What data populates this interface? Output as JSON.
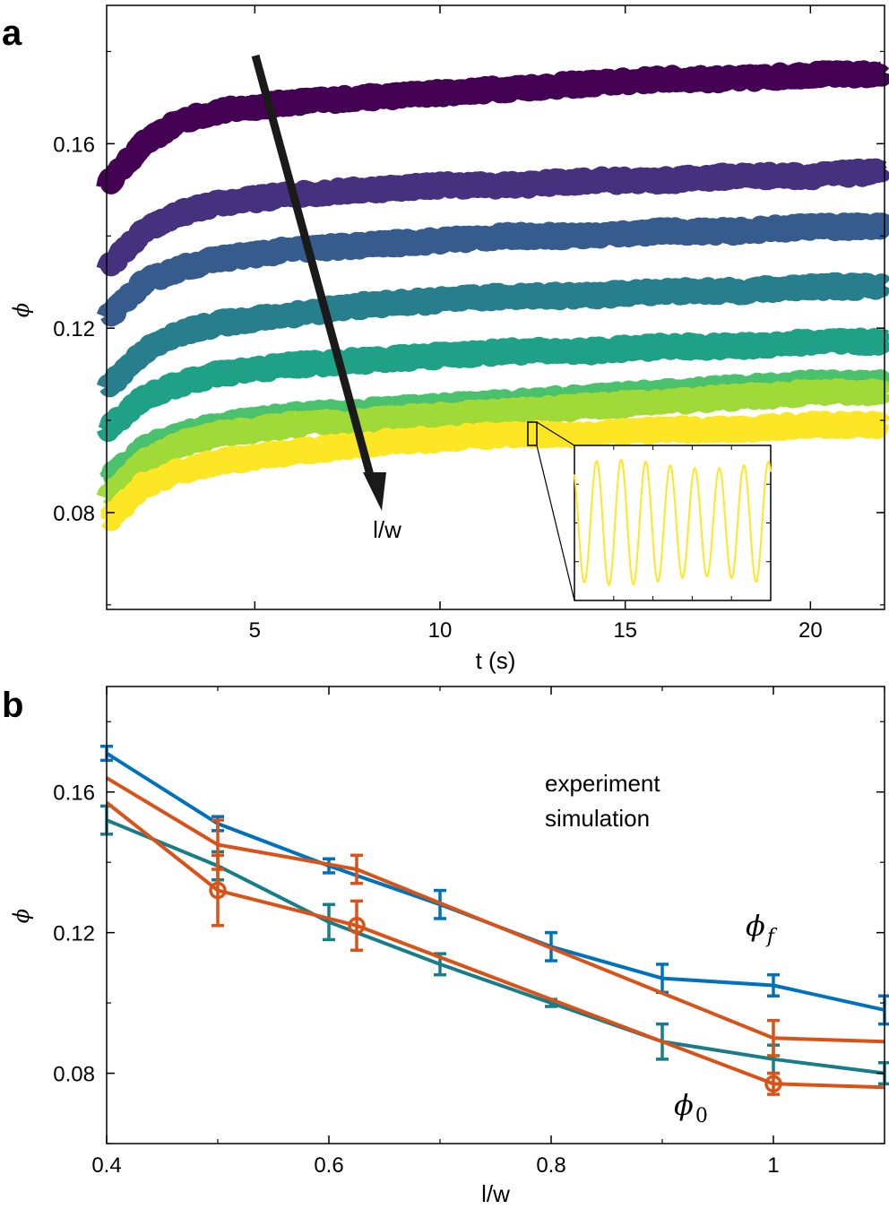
{
  "chart_data": [
    {
      "panel": "a",
      "type": "line",
      "xlabel": "t (s)",
      "ylabel": "ϕ",
      "xlim": [
        1,
        22
      ],
      "ylim": [
        0.059,
        0.19
      ],
      "xticks": [
        5,
        10,
        15,
        20
      ],
      "yticks": [
        0.08,
        0.12,
        0.16
      ],
      "ytick_labels": [
        "0.08",
        "0.12",
        "0.16"
      ],
      "arrow_label": "l/w",
      "series": [
        {
          "color": "#440154",
          "x": [
            1,
            2,
            3,
            4,
            6,
            8,
            10,
            12,
            14,
            16,
            18,
            20,
            22
          ],
          "y": [
            0.151,
            0.16,
            0.165,
            0.167,
            0.169,
            0.17,
            0.171,
            0.172,
            0.173,
            0.174,
            0.174,
            0.175,
            0.175
          ]
        },
        {
          "color": "#46317e",
          "x": [
            1,
            2,
            3,
            4,
            6,
            8,
            10,
            12,
            14,
            16,
            18,
            20,
            22
          ],
          "y": [
            0.133,
            0.141,
            0.145,
            0.147,
            0.149,
            0.15,
            0.151,
            0.151,
            0.152,
            0.152,
            0.153,
            0.153,
            0.154
          ]
        },
        {
          "color": "#365c8d",
          "x": [
            1,
            2,
            3,
            4,
            6,
            8,
            10,
            12,
            14,
            16,
            18,
            20,
            22
          ],
          "y": [
            0.122,
            0.13,
            0.133,
            0.135,
            0.137,
            0.138,
            0.139,
            0.14,
            0.14,
            0.141,
            0.141,
            0.142,
            0.142
          ]
        },
        {
          "color": "#277f8e",
          "x": [
            1,
            2,
            3,
            4,
            6,
            8,
            10,
            12,
            14,
            16,
            18,
            20,
            22
          ],
          "y": [
            0.107,
            0.115,
            0.119,
            0.121,
            0.123,
            0.125,
            0.126,
            0.127,
            0.127,
            0.128,
            0.128,
            0.129,
            0.129
          ]
        },
        {
          "color": "#1fa187",
          "x": [
            1,
            2,
            3,
            4,
            6,
            8,
            10,
            12,
            14,
            16,
            18,
            20,
            22
          ],
          "y": [
            0.098,
            0.105,
            0.108,
            0.11,
            0.112,
            0.113,
            0.114,
            0.115,
            0.115,
            0.116,
            0.116,
            0.117,
            0.117
          ]
        },
        {
          "color": "#4ac16d",
          "x": [
            1,
            2,
            3,
            4,
            6,
            8,
            10,
            12,
            14,
            16,
            18,
            20,
            22
          ],
          "y": [
            0.087,
            0.094,
            0.097,
            0.099,
            0.101,
            0.102,
            0.103,
            0.104,
            0.105,
            0.106,
            0.107,
            0.108,
            0.108
          ]
        },
        {
          "color": "#a0da39",
          "x": [
            1,
            2,
            3,
            4,
            6,
            8,
            10,
            12,
            14,
            16,
            18,
            20,
            22
          ],
          "y": [
            0.083,
            0.091,
            0.095,
            0.097,
            0.099,
            0.1,
            0.101,
            0.102,
            0.103,
            0.104,
            0.105,
            0.106,
            0.106
          ]
        },
        {
          "color": "#fde725",
          "x": [
            1,
            2,
            3,
            4,
            6,
            8,
            10,
            12,
            14,
            16,
            18,
            20,
            22
          ],
          "y": [
            0.078,
            0.086,
            0.089,
            0.091,
            0.093,
            0.095,
            0.096,
            0.097,
            0.097,
            0.098,
            0.098,
            0.099,
            0.099
          ]
        }
      ],
      "inset": {
        "type": "line",
        "color": "#fde725",
        "cycles": 8,
        "zoom_x": [
          12.35,
          12.65
        ],
        "zoom_y": [
          0.095,
          0.1
        ]
      }
    },
    {
      "panel": "b",
      "type": "line",
      "xlabel": "l/w",
      "ylabel": "ϕ",
      "xlim": [
        0.4,
        1.1
      ],
      "ylim": [
        0.06,
        0.19
      ],
      "xticks": [
        0.4,
        0.6,
        0.8,
        1
      ],
      "xtick_labels": [
        "0.4",
        "0.6",
        "0.8",
        "1"
      ],
      "yticks": [
        0.08,
        0.12,
        0.16
      ],
      "ytick_labels": [
        "0.08",
        "0.12",
        "0.16"
      ],
      "legend": [
        {
          "label": "experiment",
          "color": "#d95319"
        },
        {
          "label": "simulation",
          "color": "#0072bd"
        }
      ],
      "annotations": {
        "phi_f": "ϕ",
        "phi_f_sub": "f",
        "phi_0": "ϕ",
        "phi_0_sub": "0"
      },
      "series": [
        {
          "name": "simulation ϕf",
          "color": "#0072bd",
          "x": [
            0.4,
            0.5,
            0.6,
            0.7,
            0.8,
            0.9,
            1.0,
            1.1
          ],
          "y": [
            0.171,
            0.151,
            0.139,
            0.128,
            0.116,
            0.107,
            0.105,
            0.098
          ],
          "err": [
            0.002,
            0.002,
            0.002,
            0.004,
            0.004,
            0.004,
            0.003,
            0.004
          ]
        },
        {
          "name": "simulation ϕ0",
          "color": "#177e89",
          "x": [
            0.4,
            0.5,
            0.6,
            0.7,
            0.8,
            0.9,
            1.0,
            1.1
          ],
          "y": [
            0.152,
            0.139,
            0.123,
            0.111,
            0.1,
            0.089,
            0.084,
            0.08
          ],
          "err": [
            0.004,
            0.004,
            0.005,
            0.003,
            0.001,
            0.005,
            0.004,
            0.003
          ]
        },
        {
          "name": "experiment ϕf",
          "color": "#d95319",
          "x": [
            0.4,
            0.5,
            0.625,
            1.0,
            1.1
          ],
          "y": [
            0.164,
            0.145,
            0.138,
            0.09,
            0.089
          ],
          "err": [
            0,
            0.007,
            0.004,
            0.005,
            0
          ],
          "err_points": [
            0.5,
            0.625,
            1.0
          ]
        },
        {
          "name": "experiment ϕ0",
          "color": "#d95319",
          "x": [
            0.4,
            0.5,
            0.625,
            1.0,
            1.1
          ],
          "y": [
            0.157,
            0.132,
            0.122,
            0.077,
            0.076
          ],
          "err": [
            0,
            0.01,
            0.007,
            0.003,
            0
          ],
          "err_points": [
            0.5,
            0.625,
            1.0
          ],
          "markers": [
            0.5,
            0.625,
            1.0
          ]
        }
      ]
    }
  ]
}
